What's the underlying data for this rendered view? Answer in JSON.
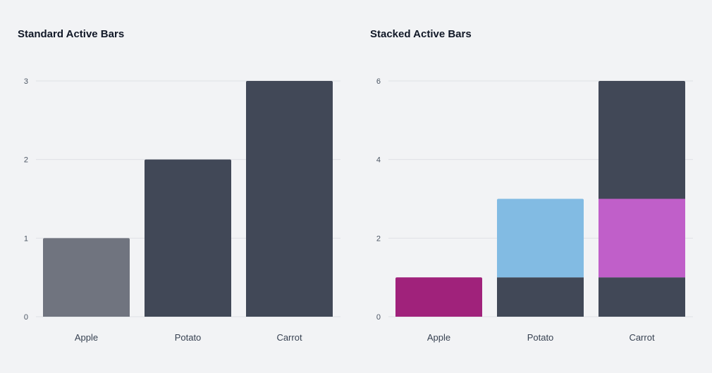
{
  "charts": {
    "standard": {
      "title": "Standard Active Bars"
    },
    "stacked": {
      "title": "Stacked Active Bars"
    }
  },
  "colors": {
    "dark": "#414857",
    "muted": "#70747f",
    "magenta": "#a0227b",
    "light_blue": "#82bbe3",
    "orchid": "#c05fc9",
    "grid": "#dfe1e5"
  },
  "chart_data": [
    {
      "type": "bar",
      "title": "Standard Active Bars",
      "categories": [
        "Apple",
        "Potato",
        "Carrot"
      ],
      "series": [
        {
          "values": [
            1,
            2,
            3
          ],
          "colors": [
            "#70747f",
            "#414857",
            "#414857"
          ]
        }
      ],
      "ylim": [
        0,
        3
      ],
      "yticks": [
        0,
        1,
        2,
        3
      ],
      "grid": true,
      "legend": "none"
    },
    {
      "type": "bar",
      "stacked": true,
      "title": "Stacked Active Bars",
      "categories": [
        "Apple",
        "Potato",
        "Carrot"
      ],
      "series": [
        {
          "values": [
            1,
            1,
            1
          ],
          "colors": [
            "#a0227b",
            "#414857",
            "#414857"
          ]
        },
        {
          "values": [
            0,
            2,
            2
          ],
          "colors": [
            "#82bbe3",
            "#82bbe3",
            "#c05fc9"
          ]
        },
        {
          "values": [
            0,
            0,
            3
          ],
          "colors": [
            "#414857",
            "#414857",
            "#414857"
          ]
        }
      ],
      "ylim": [
        0,
        6
      ],
      "yticks": [
        0,
        2,
        4,
        6
      ],
      "grid": true,
      "legend": "none"
    }
  ]
}
